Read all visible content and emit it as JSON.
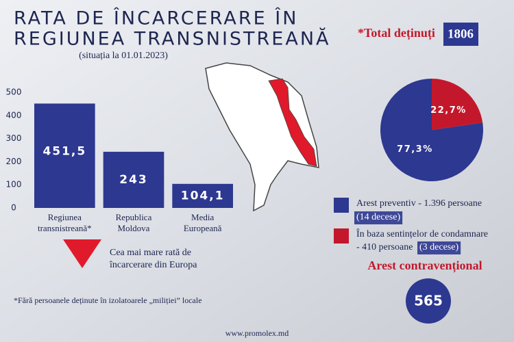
{
  "title": [
    "RATA DE ÎNCARCERARE ÎN",
    "REGIUNEA TRANSNISTREANĂ"
  ],
  "subtitle": "(situația la 01.01.2023)",
  "total": {
    "label": "*Total deținuți",
    "value": 1806
  },
  "map_note": "Cea mai mare rată de încarcerare din Europa",
  "arrest": {
    "label": "Arest contravențional",
    "value": 565
  },
  "footnote": "*Fără persoanele deținute în izolatoarele „miliției” locale",
  "website": "www.promolex.md",
  "chart_data": [
    {
      "type": "bar",
      "categories": [
        "Regiunea transnistreană*",
        "Republica Moldova",
        "Media Europeană"
      ],
      "values": [
        451.5,
        243,
        104.1
      ],
      "value_labels": [
        "451,5",
        "243",
        "104,1"
      ],
      "color": "#2d3890",
      "ylim": [
        0,
        500
      ],
      "yticks": [
        0,
        100,
        200,
        300,
        400,
        500
      ]
    },
    {
      "type": "pie",
      "categories": [
        "Arest preventiv - 1.396 persoane",
        "În baza sentințelor de condamnare - 410 persoane"
      ],
      "notes": [
        "(14 decese)",
        "(3 decese)"
      ],
      "values": [
        77.3,
        22.7
      ],
      "value_labels": [
        "77,3%",
        "22,7%"
      ],
      "colors": [
        "#2d3890",
        "#c3182b"
      ]
    }
  ]
}
